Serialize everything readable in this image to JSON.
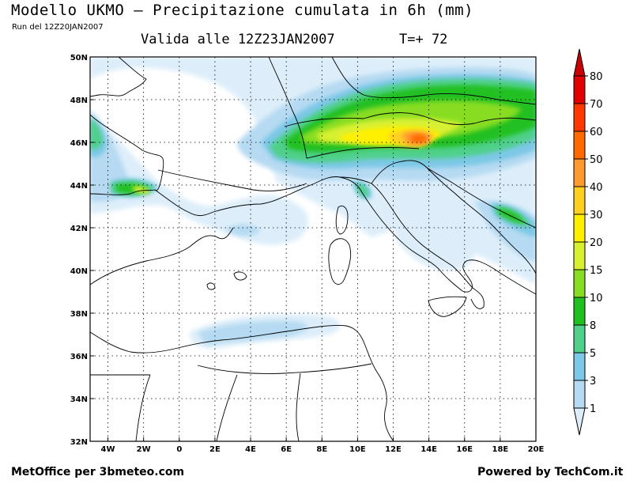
{
  "header": {
    "title": "Modello UKMO — Precipitazione cumulata in 6h (mm)",
    "run": "Run del 12Z20JAN2007",
    "valid": "Valida alle 12Z23JAN2007",
    "forecast_step": "T=+ 72"
  },
  "footer": {
    "left": "MetOffice per 3bmeteo.com",
    "right": "Powered by TechCom.it"
  },
  "map": {
    "lon_min": -5,
    "lon_max": 20,
    "lat_min": 32,
    "lat_max": 50,
    "lon_labels": [
      {
        "lon": -4,
        "label": "4W"
      },
      {
        "lon": -2,
        "label": "2W"
      },
      {
        "lon": 0,
        "label": "0"
      },
      {
        "lon": 2,
        "label": "2E"
      },
      {
        "lon": 4,
        "label": "4E"
      },
      {
        "lon": 6,
        "label": "6E"
      },
      {
        "lon": 8,
        "label": "8E"
      },
      {
        "lon": 10,
        "label": "10E"
      },
      {
        "lon": 12,
        "label": "12E"
      },
      {
        "lon": 14,
        "label": "14E"
      },
      {
        "lon": 16,
        "label": "16E"
      },
      {
        "lon": 18,
        "label": "18E"
      },
      {
        "lon": 20,
        "label": "20E"
      }
    ],
    "lat_labels": [
      {
        "lat": 50,
        "label": "50N"
      },
      {
        "lat": 48,
        "label": "48N"
      },
      {
        "lat": 46,
        "label": "46N"
      },
      {
        "lat": 44,
        "label": "44N"
      },
      {
        "lat": 42,
        "label": "42N"
      },
      {
        "lat": 40,
        "label": "40N"
      },
      {
        "lat": 38,
        "label": "38N"
      },
      {
        "lat": 36,
        "label": "36N"
      },
      {
        "lat": 34,
        "label": "34N"
      },
      {
        "lat": 32,
        "label": "32N"
      }
    ]
  },
  "legend": {
    "levels": [
      "1",
      "3",
      "5",
      "8",
      "10",
      "15",
      "20",
      "30",
      "40",
      "50",
      "60",
      "70",
      "80"
    ],
    "colors": [
      "#ddeefa",
      "#b6daf2",
      "#7cc8e6",
      "#50d08a",
      "#20c020",
      "#88dd22",
      "#d8f030",
      "#fff000",
      "#ffd020",
      "#ff9a30",
      "#ff6a00",
      "#ff3800",
      "#e00000",
      "#c80000"
    ]
  }
}
